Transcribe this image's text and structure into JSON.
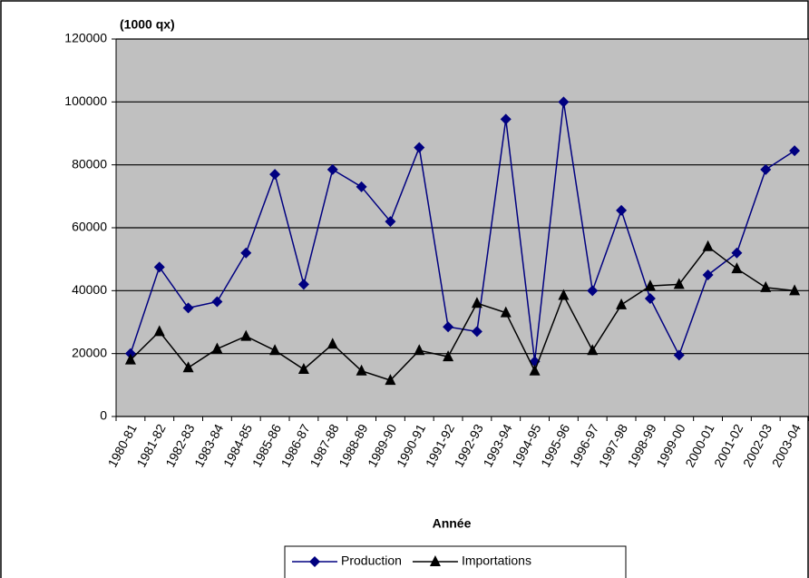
{
  "chart_data": {
    "type": "line",
    "y_label": "(1000 qx)",
    "x_label": "Année",
    "categories": [
      "1980-81",
      "1981-82",
      "1982-83",
      "1983-84",
      "1984-85",
      "1985-86",
      "1986-87",
      "1987-88",
      "1988-89",
      "1989-90",
      "1990-91",
      "1991-92",
      "1992-93",
      "1993-94",
      "1994-95",
      "1995-96",
      "1996-97",
      "1997-98",
      "1998-99",
      "1999-00",
      "2000-01",
      "2001-02",
      "2002-03",
      "2003-04"
    ],
    "series": [
      {
        "name": "Production",
        "color": "#000080",
        "marker": "diamond",
        "values": [
          20000,
          47500,
          34500,
          36500,
          52000,
          77000,
          42000,
          78500,
          73000,
          62000,
          85500,
          28500,
          27000,
          94500,
          17500,
          100000,
          40000,
          65500,
          37500,
          19500,
          45000,
          52000,
          78500,
          84500
        ]
      },
      {
        "name": "Importations",
        "color": "#000000",
        "marker": "triangle",
        "values": [
          18000,
          27000,
          15500,
          21500,
          25500,
          21000,
          15000,
          23000,
          14500,
          11500,
          21000,
          19000,
          36000,
          33000,
          14500,
          38500,
          21000,
          35500,
          41500,
          42000,
          54000,
          47000,
          41000,
          40000
        ]
      }
    ],
    "ylim": [
      0,
      120000
    ],
    "yticks": [
      0,
      20000,
      40000,
      60000,
      80000,
      100000,
      120000
    ],
    "grid": true,
    "legend": "bottom"
  }
}
